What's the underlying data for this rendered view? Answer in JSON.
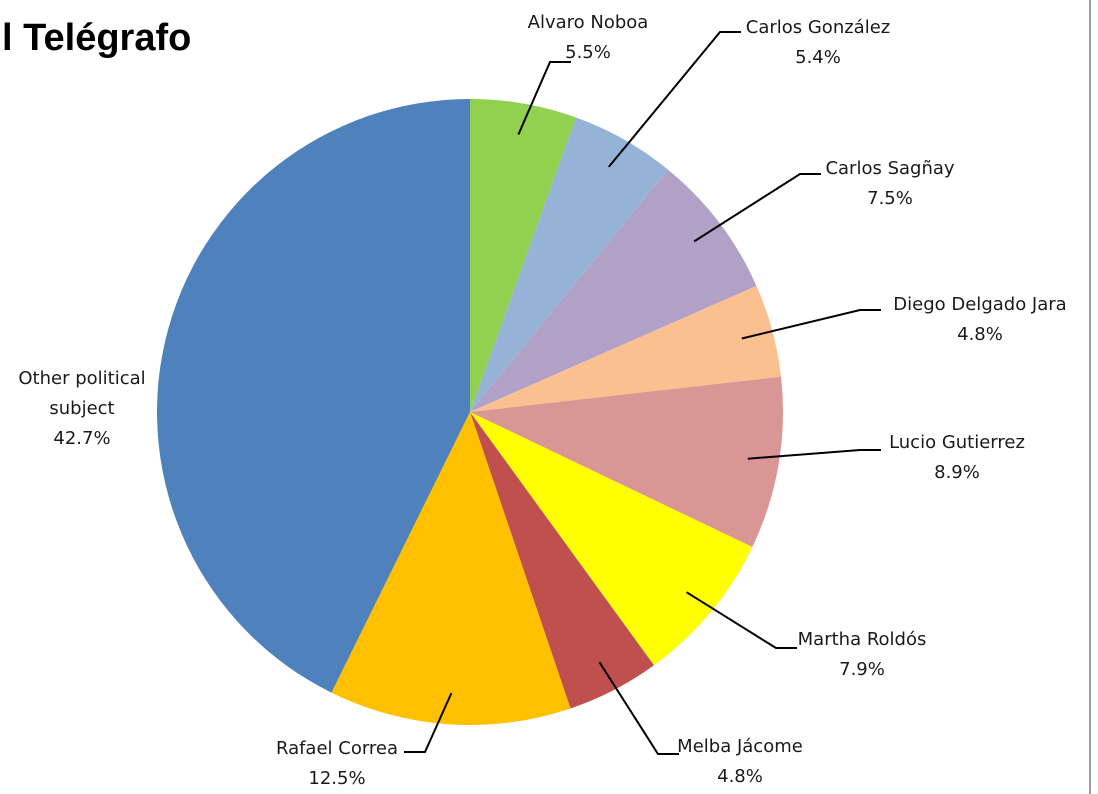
{
  "chart_data": {
    "type": "pie",
    "title": "l Telégrafo",
    "slices": [
      {
        "name": "Alvaro Noboa",
        "value": 5.5,
        "label": "5.5%",
        "color": "#92d050"
      },
      {
        "name": "Carlos González",
        "value": 5.4,
        "label": "5.4%",
        "color": "#95b3d7"
      },
      {
        "name": "Carlos Sagñay",
        "value": 7.5,
        "label": "7.5%",
        "color": "#b2a1c7"
      },
      {
        "name": "Diego Delgado Jara",
        "value": 4.8,
        "label": "4.8%",
        "color": "#fac090"
      },
      {
        "name": "Lucio Gutierrez",
        "value": 8.9,
        "label": "8.9%",
        "color": "#d99694"
      },
      {
        "name": "Martha Roldós",
        "value": 7.9,
        "label": "7.9%",
        "color": "#ffff00"
      },
      {
        "name": "Melba Jácome",
        "value": 4.8,
        "label": "4.8%",
        "color": "#c0504d"
      },
      {
        "name": "Rafael Correa",
        "value": 12.5,
        "label": "12.5%",
        "color": "#ffc000"
      },
      {
        "name": "Other political subject",
        "value": 42.7,
        "label": "42.7%",
        "color": "#4f81bd"
      }
    ]
  }
}
